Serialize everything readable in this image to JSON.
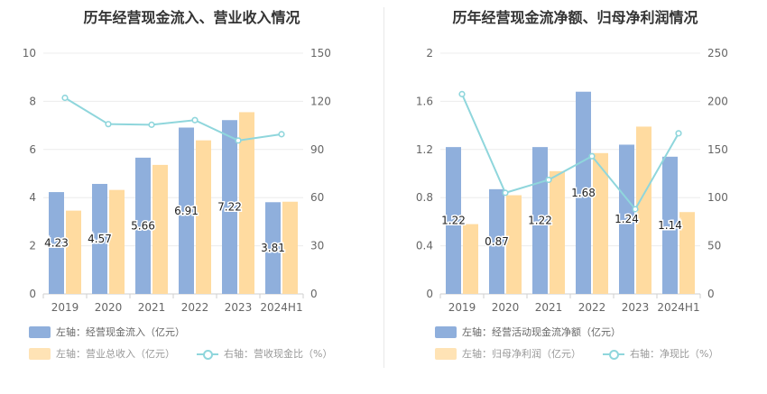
{
  "chart_data": [
    {
      "type": "bar",
      "title": "历年经营现金流入、营业收入情况",
      "categories": [
        "2019",
        "2020",
        "2021",
        "2022",
        "2023",
        "2024H1"
      ],
      "series": [
        {
          "name": "左轴：经营现金流入（亿元）",
          "axis": "left",
          "type": "bar",
          "color": "#8fafdc",
          "values": [
            4.23,
            4.57,
            5.66,
            6.91,
            7.22,
            3.81
          ],
          "labels": [
            "4.23",
            "4.57",
            "5.66",
            "6.91",
            "7.22",
            "3.81"
          ]
        },
        {
          "name": "左轴：营业总收入（亿元）",
          "axis": "left",
          "type": "bar",
          "color": "#ffdba0",
          "values": [
            3.46,
            4.32,
            5.36,
            6.38,
            7.55,
            3.83
          ]
        },
        {
          "name": "右轴：营收现金比（%）",
          "axis": "right",
          "type": "line",
          "color": "#8fd6dc",
          "values": [
            122.2,
            105.8,
            105.4,
            108.3,
            95.6,
            99.5
          ]
        }
      ],
      "y_left": {
        "min": 0,
        "max": 10,
        "ticks": [
          "0",
          "2",
          "4",
          "6",
          "8",
          "10"
        ]
      },
      "y_right": {
        "min": 0,
        "max": 150,
        "ticks": [
          "0",
          "30",
          "60",
          "90",
          "120",
          "150"
        ]
      },
      "legend_position": "bottom"
    },
    {
      "type": "bar",
      "title": "历年经营现金流净额、归母净利润情况",
      "categories": [
        "2019",
        "2020",
        "2021",
        "2022",
        "2023",
        "2024H1"
      ],
      "series": [
        {
          "name": "左轴：经营活动现金流净额（亿元）",
          "axis": "left",
          "type": "bar",
          "color": "#8fafdc",
          "values": [
            1.22,
            0.87,
            1.22,
            1.68,
            1.24,
            1.14
          ],
          "labels": [
            "1.22",
            "0.87",
            "1.22",
            "1.68",
            "1.24",
            "1.14"
          ]
        },
        {
          "name": "左轴：归母净利润（亿元）",
          "axis": "left",
          "type": "bar",
          "color": "#ffdba0",
          "values": [
            0.58,
            0.82,
            1.02,
            1.17,
            1.39,
            0.68
          ]
        },
        {
          "name": "右轴：净现比（%）",
          "axis": "right",
          "type": "line",
          "color": "#8fd6dc",
          "values": [
            207.5,
            105.0,
            118.5,
            143.0,
            88.0,
            166.8
          ]
        }
      ],
      "y_left": {
        "min": 0,
        "max": 2,
        "ticks": [
          "0",
          "0.4",
          "0.8",
          "1.2",
          "1.6",
          "2"
        ]
      },
      "y_right": {
        "min": 0,
        "max": 250,
        "ticks": [
          "0",
          "50",
          "100",
          "150",
          "200",
          "250"
        ]
      },
      "legend_position": "bottom"
    }
  ]
}
